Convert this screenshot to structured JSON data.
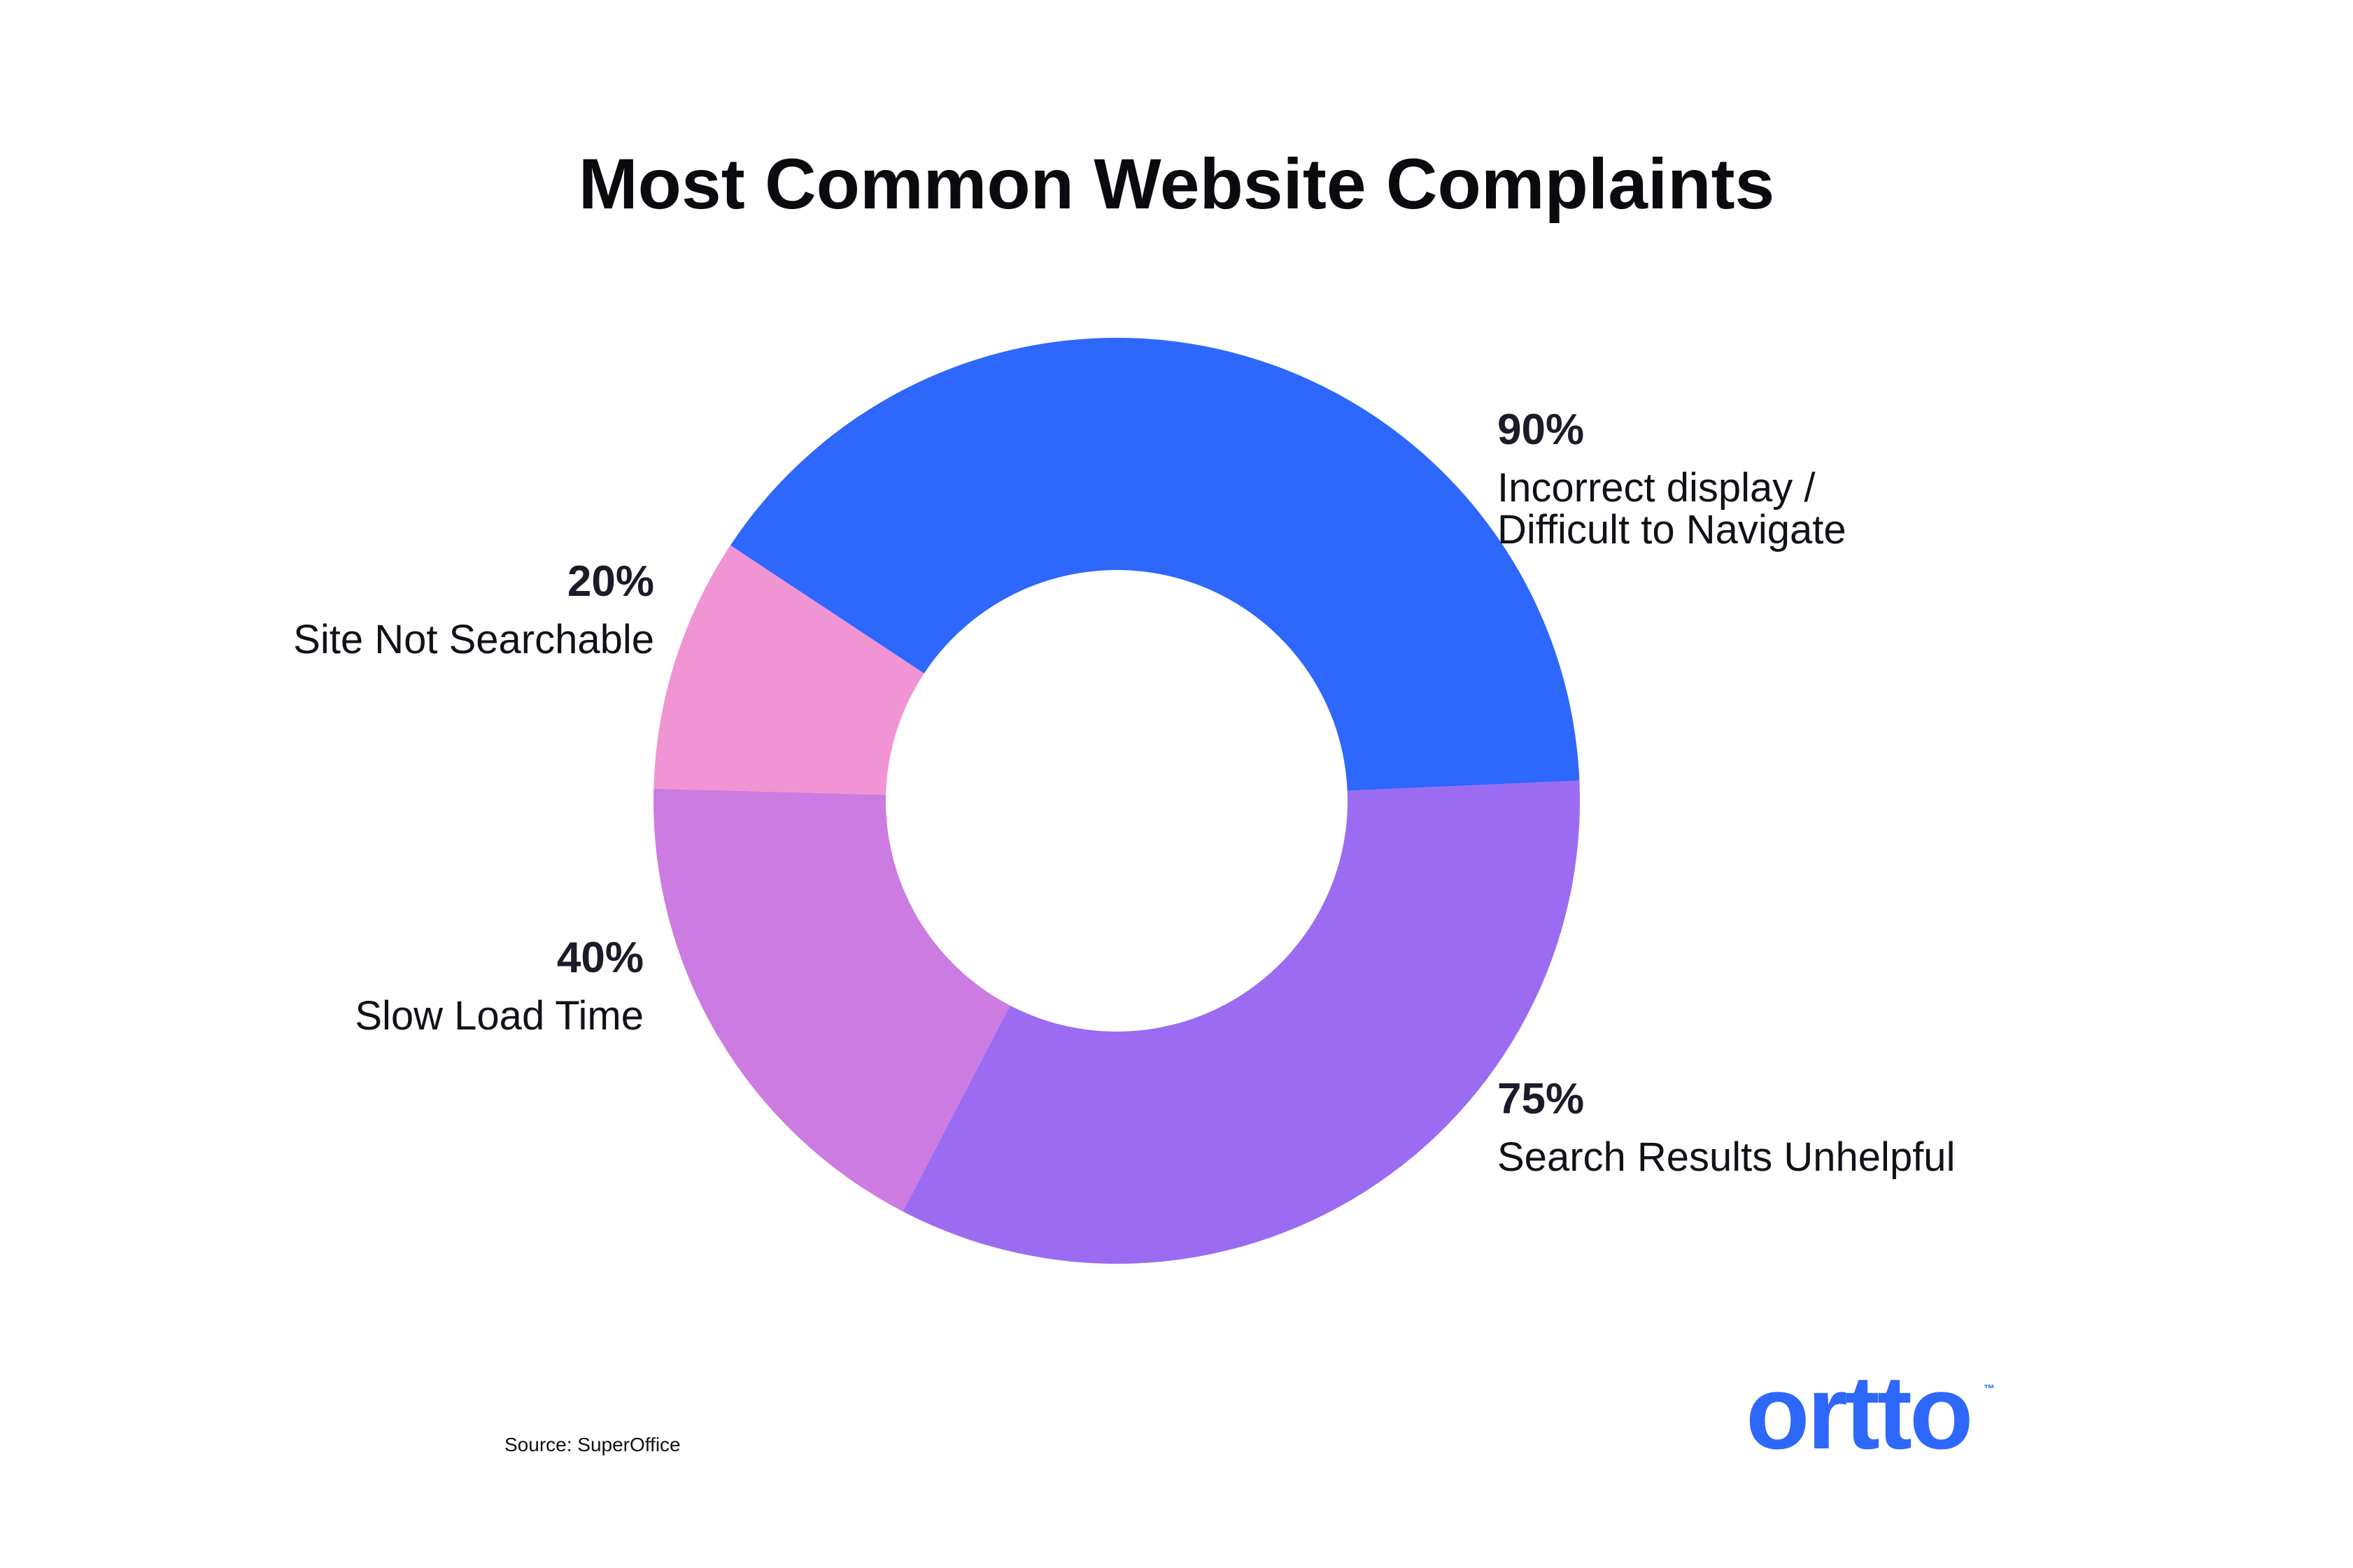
{
  "chart_data": {
    "type": "pie",
    "title": "Most Common Website Complaints",
    "slices": [
      {
        "label": "Incorrect display / Difficult to Navigate",
        "value": 90,
        "value_label": "90%",
        "color": "#2d67fc"
      },
      {
        "label": "Search Results Unhelpful",
        "value": 75,
        "value_label": "75%",
        "color": "#9b6cf2"
      },
      {
        "label": "Slow Load Time",
        "value": 40,
        "value_label": "40%",
        "color": "#cc7ce0"
      },
      {
        "label": "Site Not Searchable",
        "value": 20,
        "value_label": "20%",
        "color": "#f094d4"
      }
    ],
    "donut": true,
    "legend": "none"
  },
  "source": "Source: SuperOffice",
  "brand": {
    "logo_text": "ortto",
    "trademark": "™",
    "color": "#2d67fc"
  }
}
